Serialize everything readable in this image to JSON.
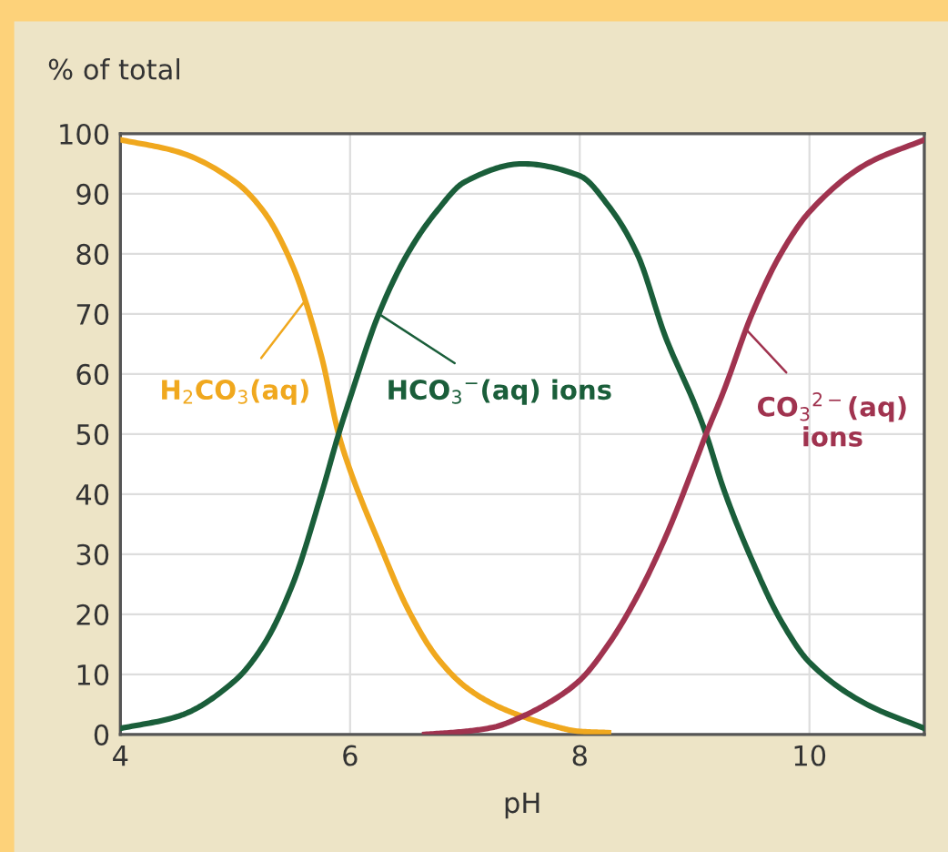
{
  "chart_data": {
    "type": "line",
    "xlabel": "pH",
    "ylabel": "% of total",
    "xlim": [
      4,
      11
    ],
    "xticks": [
      4,
      6,
      8,
      10
    ],
    "ylim": [
      0,
      100
    ],
    "yticks": [
      0,
      10,
      20,
      30,
      40,
      50,
      60,
      70,
      80,
      90,
      100
    ],
    "grid": true,
    "legend": "center",
    "marker": "none",
    "line_style": "solid",
    "series": [
      {
        "name": "H$_{2}$CO$_{3}$(aq)",
        "color": "#f0a81e",
        "x": [
          4.0,
          4.5,
          5.0,
          5.25,
          5.5,
          5.75,
          5.9,
          6.0,
          6.25,
          6.5,
          6.75,
          7.0,
          7.25,
          7.5,
          7.75,
          8.0,
          8.25
        ],
        "values": [
          99,
          97,
          92,
          87,
          78,
          63,
          50,
          44,
          32,
          21,
          13,
          8,
          5,
          3,
          1.5,
          0.5,
          0.3
        ]
      },
      {
        "name": "HCO$_{3}$$^{−}$(aq) ions",
        "color": "#1a5e3a",
        "x": [
          4.0,
          4.5,
          5.0,
          5.25,
          5.5,
          5.75,
          5.9,
          6.0,
          6.25,
          6.5,
          6.75,
          7.0,
          7.5,
          8.0,
          8.25,
          8.5,
          8.75,
          9.0,
          9.1,
          9.25,
          9.5,
          9.75,
          10.0,
          10.5,
          11.0
        ],
        "values": [
          1,
          3,
          9,
          15,
          25,
          40,
          50,
          56,
          70,
          80,
          87,
          92,
          95,
          93,
          88,
          80,
          66,
          55,
          50,
          41,
          29,
          19,
          12,
          5,
          1
        ]
      },
      {
        "name": "CO$_{3}$$^{2−}$(aq)\nions",
        "color": "#a0334f",
        "x": [
          6.65,
          7.0,
          7.25,
          7.5,
          7.75,
          8.0,
          8.25,
          8.5,
          8.75,
          9.0,
          9.1,
          9.25,
          9.5,
          9.75,
          10.0,
          10.5,
          11.0
        ],
        "values": [
          0,
          0.5,
          1.2,
          3,
          5.5,
          9,
          15,
          23,
          33,
          45,
          50,
          57,
          70,
          80,
          87,
          95,
          99
        ]
      }
    ]
  }
}
